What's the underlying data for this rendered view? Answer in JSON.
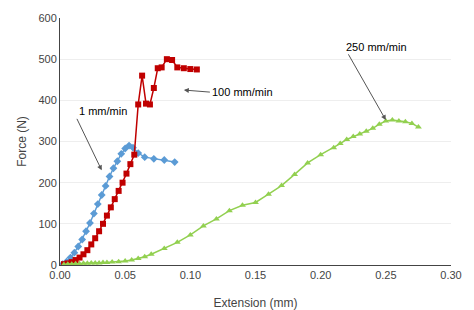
{
  "chart_data": {
    "type": "line",
    "xlabel": "Extension (mm)",
    "ylabel": "Force (N)",
    "xlim": [
      0,
      0.3
    ],
    "ylim": [
      0,
      600
    ],
    "xticks": [
      {
        "value": 0.0,
        "label": "0.00"
      },
      0.05,
      {
        "value": 0.1,
        "label": "0.10"
      },
      0.15,
      {
        "value": 0.2,
        "label": "0.20"
      },
      0.25,
      {
        "value": 0.3,
        "label": "0.30"
      }
    ],
    "yticks": [
      0,
      100,
      200,
      300,
      400,
      500,
      600
    ],
    "grid": "y",
    "series": [
      {
        "color": "#5b9bd5",
        "marker": "diamond",
        "x": [
          0.002,
          0.005,
          0.008,
          0.011,
          0.014,
          0.017,
          0.02,
          0.023,
          0.026,
          0.029,
          0.032,
          0.035,
          0.038,
          0.041,
          0.044,
          0.047,
          0.05,
          0.053,
          0.056,
          0.06,
          0.065,
          0.072,
          0.08,
          0.088
        ],
        "values": [
          2,
          8,
          18,
          30,
          45,
          62,
          82,
          102,
          125,
          148,
          170,
          192,
          215,
          235,
          252,
          270,
          283,
          290,
          285,
          272,
          262,
          258,
          255,
          250
        ]
      },
      {
        "color": "#c00000",
        "marker": "square",
        "x": [
          0.003,
          0.006,
          0.009,
          0.012,
          0.015,
          0.018,
          0.021,
          0.024,
          0.027,
          0.03,
          0.033,
          0.036,
          0.039,
          0.042,
          0.045,
          0.048,
          0.051,
          0.054,
          0.057,
          0.06,
          0.063,
          0.066,
          0.069,
          0.072,
          0.075,
          0.078,
          0.082,
          0.086,
          0.09,
          0.095,
          0.1,
          0.105
        ],
        "values": [
          2,
          4,
          7,
          12,
          18,
          26,
          36,
          50,
          65,
          82,
          100,
          120,
          140,
          160,
          180,
          200,
          222,
          245,
          268,
          390,
          460,
          392,
          390,
          430,
          478,
          480,
          500,
          498,
          480,
          478,
          476,
          475
        ]
      },
      {
        "color": "#92d050",
        "marker": "triangle-up",
        "x": [
          0.003,
          0.006,
          0.009,
          0.012,
          0.015,
          0.018,
          0.021,
          0.024,
          0.027,
          0.03,
          0.033,
          0.036,
          0.04,
          0.045,
          0.05,
          0.055,
          0.06,
          0.065,
          0.07,
          0.08,
          0.09,
          0.1,
          0.11,
          0.12,
          0.13,
          0.14,
          0.15,
          0.16,
          0.17,
          0.18,
          0.19,
          0.2,
          0.21,
          0.215,
          0.22,
          0.225,
          0.23,
          0.235,
          0.24,
          0.245,
          0.25,
          0.255,
          0.26,
          0.265,
          0.27,
          0.275
        ],
        "values": [
          1,
          2,
          2,
          3,
          3,
          4,
          4,
          5,
          5,
          5,
          6,
          6,
          7,
          8,
          10,
          12,
          16,
          20,
          26,
          40,
          55,
          73,
          95,
          112,
          132,
          145,
          152,
          172,
          193,
          220,
          248,
          268,
          285,
          295,
          305,
          312,
          318,
          325,
          332,
          342,
          350,
          352,
          350,
          348,
          344,
          335
        ]
      }
    ],
    "annotations": [
      {
        "text": "1 mm/min",
        "x": 0.032,
        "y": 230,
        "text_x": 0.013,
        "text_y": 355
      },
      {
        "text": "100 mm/min",
        "x": 0.095,
        "y": 425,
        "text_x": 0.115,
        "text_y": 420
      },
      {
        "text": "250 mm/min",
        "x": 0.25,
        "y": 352,
        "text_x": 0.218,
        "text_y": 530
      }
    ]
  }
}
